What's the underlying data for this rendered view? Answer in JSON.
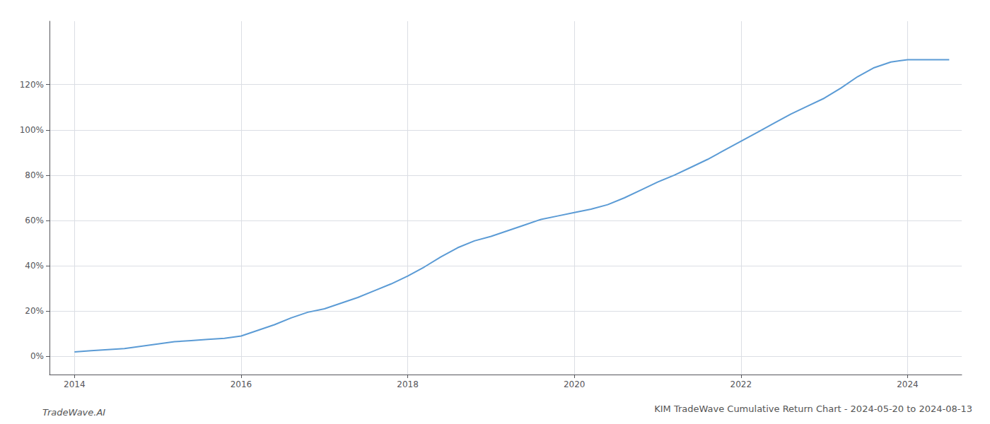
{
  "chart_data": {
    "type": "line",
    "title": "KIM TradeWave Cumulative Return Chart - 2024-05-20 to 2024-08-13",
    "annotations": [
      "TradeWave.AI"
    ],
    "color": "#5b9bd5",
    "grid": true,
    "x": [
      2014.0,
      2014.2,
      2014.4,
      2014.6,
      2014.8,
      2015.0,
      2015.2,
      2015.4,
      2015.6,
      2015.8,
      2016.0,
      2016.2,
      2016.4,
      2016.6,
      2016.8,
      2017.0,
      2017.2,
      2017.4,
      2017.6,
      2017.8,
      2018.0,
      2018.2,
      2018.4,
      2018.6,
      2018.8,
      2019.0,
      2019.2,
      2019.4,
      2019.6,
      2019.8,
      2020.0,
      2020.2,
      2020.4,
      2020.6,
      2020.8,
      2021.0,
      2021.2,
      2021.4,
      2021.6,
      2021.8,
      2022.0,
      2022.2,
      2022.4,
      2022.6,
      2022.8,
      2023.0,
      2023.2,
      2023.4,
      2023.6,
      2023.8,
      2024.0,
      2024.2,
      2024.5
    ],
    "values": [
      2.0,
      2.5,
      3.0,
      3.5,
      4.5,
      5.5,
      6.5,
      7.0,
      7.5,
      8.0,
      9.0,
      11.5,
      14.0,
      17.0,
      19.5,
      21.0,
      23.5,
      26.0,
      29.0,
      32.0,
      35.5,
      39.5,
      44.0,
      48.0,
      51.0,
      53.0,
      55.5,
      58.0,
      60.5,
      62.0,
      63.5,
      65.0,
      67.0,
      70.0,
      73.5,
      77.0,
      80.0,
      83.5,
      87.0,
      91.0,
      95.0,
      99.0,
      103.0,
      107.0,
      110.5,
      114.0,
      118.5,
      123.5,
      127.5,
      130.0,
      131.0,
      131.0,
      131.0
    ],
    "xlim": [
      2013.7,
      2024.65
    ],
    "ylim": [
      -8,
      148
    ],
    "xticks": [
      2014,
      2016,
      2018,
      2020,
      2022,
      2024
    ],
    "yticks": [
      {
        "value": 0,
        "label": "0%"
      },
      {
        "value": 20,
        "label": "20%"
      },
      {
        "value": 40,
        "label": "40%"
      },
      {
        "value": 60,
        "label": "60%"
      },
      {
        "value": 80,
        "label": "80%"
      },
      {
        "value": 100,
        "label": "100%"
      },
      {
        "value": 120,
        "label": "120%"
      }
    ]
  }
}
